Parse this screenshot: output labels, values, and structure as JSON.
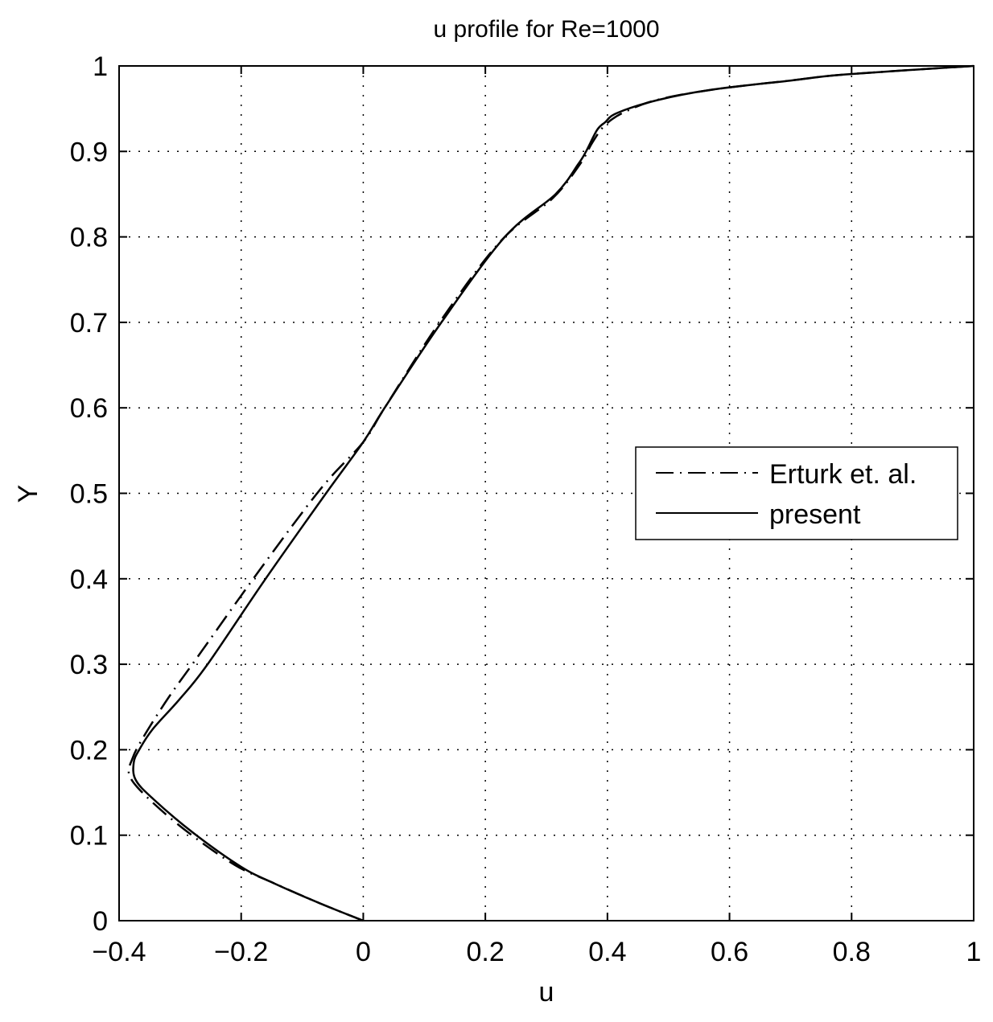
{
  "chart_data": {
    "type": "line",
    "title": "u profile for Re=1000",
    "xlabel": "u",
    "ylabel": "Y",
    "xlim": [
      -0.4,
      1
    ],
    "ylim": [
      0,
      1
    ],
    "xticks": [
      -0.4,
      -0.2,
      0,
      0.2,
      0.4,
      0.6,
      0.8,
      1
    ],
    "xtick_labels": [
      "−0.4",
      "−0.2",
      "0",
      "0.2",
      "0.4",
      "0.6",
      "0.8",
      "1"
    ],
    "yticks": [
      0,
      0.1,
      0.2,
      0.3,
      0.4,
      0.5,
      0.6,
      0.7,
      0.8,
      0.9,
      1
    ],
    "ytick_labels": [
      "0",
      "0.1",
      "0.2",
      "0.3",
      "0.4",
      "0.5",
      "0.6",
      "0.7",
      "0.8",
      "0.9",
      "1"
    ],
    "grid": true,
    "legend_position": "right",
    "series": [
      {
        "name": "Erturk et. al.",
        "style": "dash-dot",
        "color": "#000000",
        "x": [
          0,
          -0.07,
          -0.15,
          -0.21,
          -0.29,
          -0.355,
          -0.383,
          -0.378,
          -0.36,
          -0.32,
          -0.275,
          -0.17,
          -0.07,
          0,
          0.035,
          0.125,
          0.225,
          0.31,
          0.355,
          0.375,
          0.395,
          0.425,
          0.48,
          0.57,
          0.7,
          0.79,
          1
        ],
        "y": [
          0,
          0.02,
          0.045,
          0.065,
          0.105,
          0.145,
          0.17,
          0.19,
          0.215,
          0.26,
          0.305,
          0.41,
          0.505,
          0.56,
          0.6,
          0.7,
          0.795,
          0.845,
          0.885,
          0.91,
          0.93,
          0.945,
          0.96,
          0.972,
          0.983,
          0.99,
          1
        ]
      },
      {
        "name": "present",
        "style": "solid",
        "color": "#000000",
        "x": [
          0,
          -0.07,
          -0.147,
          -0.2,
          -0.279,
          -0.345,
          -0.373,
          -0.376,
          -0.367,
          -0.345,
          -0.301,
          -0.256,
          -0.16,
          -0.061,
          0,
          0.035,
          0.128,
          0.232,
          0.315,
          0.352,
          0.365,
          0.383,
          0.396,
          0.416,
          0.482,
          0.569,
          0.701,
          0.789,
          1
        ],
        "y": [
          0,
          0.02,
          0.044,
          0.063,
          0.103,
          0.143,
          0.165,
          0.185,
          0.2,
          0.224,
          0.259,
          0.299,
          0.4,
          0.5,
          0.56,
          0.6,
          0.7,
          0.8,
          0.85,
          0.885,
          0.9,
          0.925,
          0.934,
          0.945,
          0.96,
          0.972,
          0.983,
          0.99,
          1
        ]
      }
    ]
  }
}
